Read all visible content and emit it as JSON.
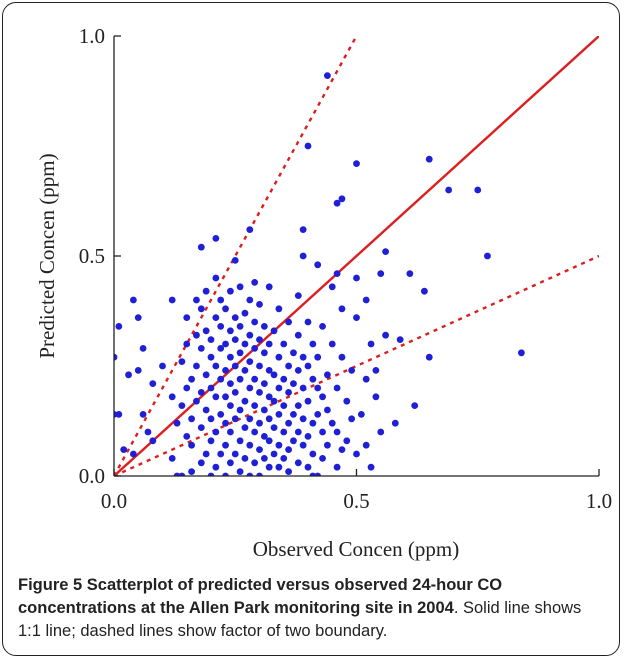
{
  "chart_data": {
    "type": "scatter",
    "xlabel": "Observed Concen (ppm)",
    "ylabel": "Predicted Concen (ppm)",
    "xlim": [
      0,
      1
    ],
    "ylim": [
      0,
      1
    ],
    "xticks": [
      "0.0",
      "0.5",
      "1.0"
    ],
    "yticks": [
      "0.0",
      "0.5",
      "1.0"
    ],
    "grid": false,
    "point_color": "#1f1fd6",
    "line_color": "#dd1e1e",
    "reference_lines": [
      {
        "style": "solid",
        "slope": 1
      },
      {
        "style": "dashed",
        "slope": 2
      },
      {
        "style": "dashed",
        "slope": 0.5
      }
    ],
    "points": [
      [
        0.0,
        0.27
      ],
      [
        0.01,
        0.34
      ],
      [
        0.0,
        0.14
      ],
      [
        0.01,
        0.14
      ],
      [
        0.02,
        0.06
      ],
      [
        0.03,
        0.23
      ],
      [
        0.04,
        0.4
      ],
      [
        0.04,
        0.05
      ],
      [
        0.05,
        0.36
      ],
      [
        0.05,
        0.24
      ],
      [
        0.06,
        0.29
      ],
      [
        0.06,
        0.14
      ],
      [
        0.07,
        0.1
      ],
      [
        0.08,
        0.08
      ],
      [
        0.08,
        0.21
      ],
      [
        0.1,
        0.25
      ],
      [
        0.12,
        0.04
      ],
      [
        0.12,
        0.18
      ],
      [
        0.12,
        0.4
      ],
      [
        0.13,
        0.0
      ],
      [
        0.13,
        0.12
      ],
      [
        0.14,
        0.0
      ],
      [
        0.14,
        0.16
      ],
      [
        0.14,
        0.26
      ],
      [
        0.15,
        0.09
      ],
      [
        0.15,
        0.2
      ],
      [
        0.15,
        0.3
      ],
      [
        0.15,
        0.36
      ],
      [
        0.16,
        0.07
      ],
      [
        0.16,
        0.13
      ],
      [
        0.16,
        0.22
      ],
      [
        0.16,
        0.01
      ],
      [
        0.17,
        0.17
      ],
      [
        0.17,
        0.25
      ],
      [
        0.17,
        0.32
      ],
      [
        0.17,
        0.4
      ],
      [
        0.18,
        0.03
      ],
      [
        0.18,
        0.11
      ],
      [
        0.18,
        0.19
      ],
      [
        0.18,
        0.29
      ],
      [
        0.18,
        0.38
      ],
      [
        0.18,
        0.52
      ],
      [
        0.19,
        0.05
      ],
      [
        0.19,
        0.15
      ],
      [
        0.19,
        0.23
      ],
      [
        0.19,
        0.33
      ],
      [
        0.19,
        0.42
      ],
      [
        0.2,
        0.0
      ],
      [
        0.2,
        0.08
      ],
      [
        0.2,
        0.13
      ],
      [
        0.2,
        0.2
      ],
      [
        0.2,
        0.27
      ],
      [
        0.2,
        0.31
      ],
      [
        0.21,
        0.02
      ],
      [
        0.21,
        0.1
      ],
      [
        0.21,
        0.18
      ],
      [
        0.21,
        0.25
      ],
      [
        0.21,
        0.36
      ],
      [
        0.21,
        0.45
      ],
      [
        0.21,
        0.54
      ],
      [
        0.22,
        0.05
      ],
      [
        0.22,
        0.14
      ],
      [
        0.22,
        0.22
      ],
      [
        0.22,
        0.29
      ],
      [
        0.22,
        0.34
      ],
      [
        0.22,
        0.4
      ],
      [
        0.23,
        0.0
      ],
      [
        0.23,
        0.07
      ],
      [
        0.23,
        0.12
      ],
      [
        0.23,
        0.18
      ],
      [
        0.23,
        0.24
      ],
      [
        0.23,
        0.3
      ],
      [
        0.23,
        0.38
      ],
      [
        0.24,
        0.03
      ],
      [
        0.24,
        0.1
      ],
      [
        0.24,
        0.16
      ],
      [
        0.24,
        0.21
      ],
      [
        0.24,
        0.27
      ],
      [
        0.24,
        0.33
      ],
      [
        0.24,
        0.42
      ],
      [
        0.25,
        0.05
      ],
      [
        0.25,
        0.13
      ],
      [
        0.25,
        0.19
      ],
      [
        0.25,
        0.25
      ],
      [
        0.25,
        0.31
      ],
      [
        0.25,
        0.36
      ],
      [
        0.25,
        0.49
      ],
      [
        0.26,
        0.01
      ],
      [
        0.26,
        0.08
      ],
      [
        0.26,
        0.15
      ],
      [
        0.26,
        0.22
      ],
      [
        0.26,
        0.28
      ],
      [
        0.26,
        0.34
      ],
      [
        0.26,
        0.43
      ],
      [
        0.27,
        0.04
      ],
      [
        0.27,
        0.11
      ],
      [
        0.27,
        0.17
      ],
      [
        0.27,
        0.24
      ],
      [
        0.27,
        0.3
      ],
      [
        0.27,
        0.37
      ],
      [
        0.28,
        0.0
      ],
      [
        0.28,
        0.07
      ],
      [
        0.28,
        0.13
      ],
      [
        0.28,
        0.2
      ],
      [
        0.28,
        0.26
      ],
      [
        0.28,
        0.32
      ],
      [
        0.28,
        0.4
      ],
      [
        0.28,
        0.56
      ],
      [
        0.29,
        0.03
      ],
      [
        0.29,
        0.1
      ],
      [
        0.29,
        0.16
      ],
      [
        0.29,
        0.22
      ],
      [
        0.29,
        0.29
      ],
      [
        0.29,
        0.35
      ],
      [
        0.29,
        0.44
      ],
      [
        0.3,
        0.0
      ],
      [
        0.3,
        0.06
      ],
      [
        0.3,
        0.12
      ],
      [
        0.3,
        0.19
      ],
      [
        0.3,
        0.25
      ],
      [
        0.3,
        0.31
      ],
      [
        0.3,
        0.39
      ],
      [
        0.31,
        0.04
      ],
      [
        0.31,
        0.09
      ],
      [
        0.31,
        0.15
      ],
      [
        0.31,
        0.21
      ],
      [
        0.31,
        0.28
      ],
      [
        0.31,
        0.34
      ],
      [
        0.32,
        0.02
      ],
      [
        0.32,
        0.08
      ],
      [
        0.32,
        0.13
      ],
      [
        0.32,
        0.18
      ],
      [
        0.32,
        0.24
      ],
      [
        0.32,
        0.3
      ],
      [
        0.32,
        0.43
      ],
      [
        0.33,
        0.05
      ],
      [
        0.33,
        0.11
      ],
      [
        0.33,
        0.17
      ],
      [
        0.33,
        0.23
      ],
      [
        0.33,
        0.33
      ],
      [
        0.34,
        0.02
      ],
      [
        0.34,
        0.07
      ],
      [
        0.34,
        0.14
      ],
      [
        0.34,
        0.2
      ],
      [
        0.34,
        0.27
      ],
      [
        0.34,
        0.38
      ],
      [
        0.35,
        0.04
      ],
      [
        0.35,
        0.1
      ],
      [
        0.35,
        0.16
      ],
      [
        0.35,
        0.22
      ],
      [
        0.35,
        0.3
      ],
      [
        0.36,
        0.01
      ],
      [
        0.36,
        0.06
      ],
      [
        0.36,
        0.12
      ],
      [
        0.36,
        0.19
      ],
      [
        0.36,
        0.25
      ],
      [
        0.36,
        0.35
      ],
      [
        0.37,
        0.08
      ],
      [
        0.37,
        0.14
      ],
      [
        0.37,
        0.21
      ],
      [
        0.37,
        0.28
      ],
      [
        0.38,
        0.03
      ],
      [
        0.38,
        0.1
      ],
      [
        0.38,
        0.16
      ],
      [
        0.38,
        0.24
      ],
      [
        0.38,
        0.32
      ],
      [
        0.38,
        0.41
      ],
      [
        0.39,
        0.07
      ],
      [
        0.39,
        0.13
      ],
      [
        0.39,
        0.2
      ],
      [
        0.39,
        0.27
      ],
      [
        0.39,
        0.5
      ],
      [
        0.39,
        0.56
      ],
      [
        0.4,
        0.02
      ],
      [
        0.4,
        0.09
      ],
      [
        0.4,
        0.17
      ],
      [
        0.4,
        0.25
      ],
      [
        0.4,
        0.35
      ],
      [
        0.4,
        0.75
      ],
      [
        0.41,
        0.05
      ],
      [
        0.41,
        0.12
      ],
      [
        0.41,
        0.22
      ],
      [
        0.41,
        0.3
      ],
      [
        0.42,
        0.0
      ],
      [
        0.42,
        0.14
      ],
      [
        0.42,
        0.2
      ],
      [
        0.42,
        0.27
      ],
      [
        0.42,
        0.48
      ],
      [
        0.43,
        0.04
      ],
      [
        0.43,
        0.1
      ],
      [
        0.43,
        0.18
      ],
      [
        0.43,
        0.34
      ],
      [
        0.44,
        0.07
      ],
      [
        0.44,
        0.15
      ],
      [
        0.44,
        0.23
      ],
      [
        0.44,
        0.91
      ],
      [
        0.45,
        0.12
      ],
      [
        0.45,
        0.3
      ],
      [
        0.45,
        0.43
      ],
      [
        0.46,
        0.62
      ],
      [
        0.46,
        0.02
      ],
      [
        0.46,
        0.1
      ],
      [
        0.46,
        0.2
      ],
      [
        0.46,
        0.46
      ],
      [
        0.47,
        0.06
      ],
      [
        0.47,
        0.27
      ],
      [
        0.47,
        0.38
      ],
      [
        0.47,
        0.63
      ],
      [
        0.48,
        0.08
      ],
      [
        0.48,
        0.17
      ],
      [
        0.49,
        0.13
      ],
      [
        0.49,
        0.24
      ],
      [
        0.5,
        0.05
      ],
      [
        0.5,
        0.36
      ],
      [
        0.5,
        0.45
      ],
      [
        0.5,
        0.71
      ],
      [
        0.51,
        0.14
      ],
      [
        0.52,
        0.07
      ],
      [
        0.52,
        0.22
      ],
      [
        0.52,
        0.4
      ],
      [
        0.53,
        0.02
      ],
      [
        0.53,
        0.3
      ],
      [
        0.54,
        0.18
      ],
      [
        0.54,
        0.24
      ],
      [
        0.55,
        0.1
      ],
      [
        0.55,
        0.46
      ],
      [
        0.56,
        0.32
      ],
      [
        0.56,
        0.51
      ],
      [
        0.58,
        0.12
      ],
      [
        0.59,
        0.31
      ],
      [
        0.61,
        0.46
      ],
      [
        0.62,
        0.16
      ],
      [
        0.64,
        0.42
      ],
      [
        0.65,
        0.27
      ],
      [
        0.65,
        0.72
      ],
      [
        0.69,
        0.65
      ],
      [
        0.75,
        0.65
      ],
      [
        0.77,
        0.5
      ],
      [
        0.84,
        0.28
      ],
      [
        0.41,
        0.0
      ]
    ]
  },
  "caption": {
    "bold_text": "Figure 5 Scatterplot of predicted versus observed 24-hour CO concentrations at the Allen Park monitoring site in 2004",
    "plain_text": ". Solid line shows 1:1 line; dashed lines show factor of two boundary."
  }
}
